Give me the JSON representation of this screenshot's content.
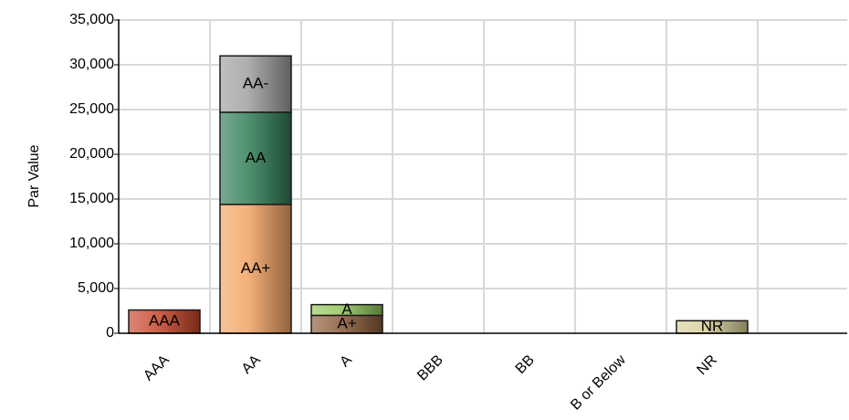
{
  "chart_data": {
    "type": "bar",
    "stacked": true,
    "title": "",
    "xlabel": "",
    "ylabel": "Par Value",
    "ylim": [
      0,
      35000
    ],
    "y_ticks": [
      "0",
      "5,000",
      "10,000",
      "15,000",
      "20,000",
      "25,000",
      "30,000",
      "35,000"
    ],
    "grid": true,
    "categories": [
      "AAA",
      "AA",
      "A",
      "BBB",
      "BB",
      "B or Below",
      "NR"
    ],
    "bars": [
      {
        "category": "AAA",
        "segments": [
          {
            "label": "AAA",
            "value": 2600,
            "color": "#c8452a"
          }
        ]
      },
      {
        "category": "AA",
        "segments": [
          {
            "label": "AA+",
            "value": 14400,
            "color": "#f2a263"
          },
          {
            "label": "AA",
            "value": 10300,
            "color": "#2f7d55"
          },
          {
            "label": "AA-",
            "value": 6300,
            "color": "#9e9e9e"
          }
        ]
      },
      {
        "category": "A",
        "segments": [
          {
            "label": "A+",
            "value": 2000,
            "color": "#8a5a38"
          },
          {
            "label": "A",
            "value": 1200,
            "color": "#93c85b"
          }
        ]
      },
      {
        "category": "BBB",
        "segments": []
      },
      {
        "category": "BB",
        "segments": []
      },
      {
        "category": "B or Below",
        "segments": []
      },
      {
        "category": "NR",
        "segments": [
          {
            "label": "NR",
            "value": 1400,
            "color": "#d8d09a"
          }
        ]
      }
    ]
  }
}
